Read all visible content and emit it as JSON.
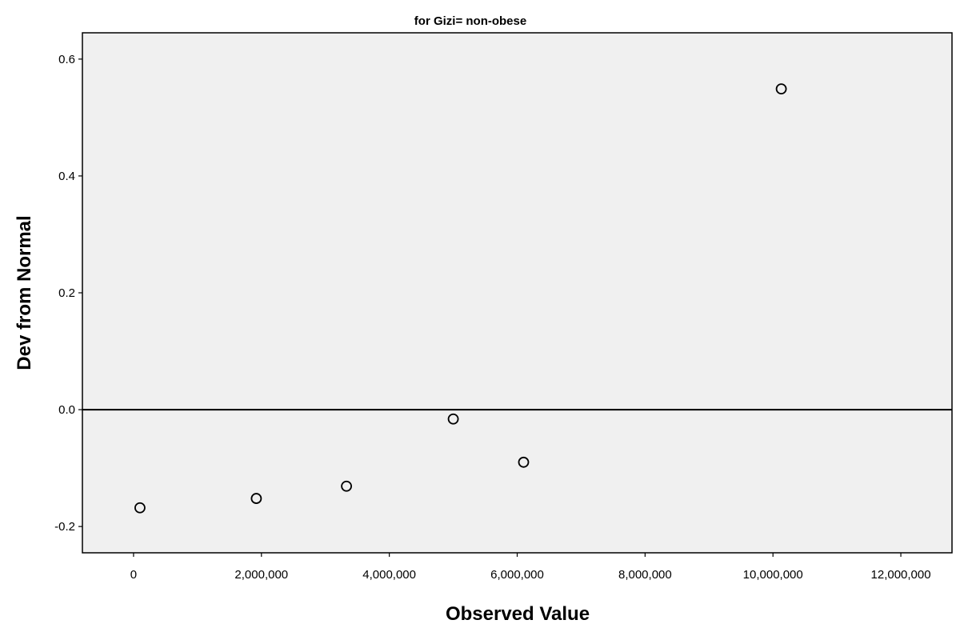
{
  "chart_data": {
    "type": "scatter",
    "title": "for Gizi= non-obese",
    "xlabel": "Observed Value",
    "ylabel": "Dev from Normal",
    "xlim": [
      -800000,
      12800000
    ],
    "ylim": [
      -0.245,
      0.645
    ],
    "x_ticks": [
      0,
      2000000,
      4000000,
      6000000,
      8000000,
      10000000,
      12000000
    ],
    "x_tick_labels": [
      "0",
      "2,000,000",
      "4,000,000",
      "6,000,000",
      "8,000,000",
      "10,000,000",
      "12,000,000"
    ],
    "y_ticks": [
      -0.2,
      0.0,
      0.2,
      0.4,
      0.6
    ],
    "y_tick_labels": [
      "-0.2",
      "0.0",
      "0.2",
      "0.4",
      "0.6"
    ],
    "reference_line_y": 0.0,
    "grid": false,
    "points": [
      {
        "x": 100000,
        "y": -0.168
      },
      {
        "x": 1920000,
        "y": -0.152
      },
      {
        "x": 3330000,
        "y": -0.131
      },
      {
        "x": 5000000,
        "y": -0.016
      },
      {
        "x": 6100000,
        "y": -0.09
      },
      {
        "x": 10130000,
        "y": 0.549
      }
    ],
    "colors": {
      "plot_background": "#f0f0f0",
      "frame": "#000000",
      "marker_stroke": "#000000",
      "marker_fill": "#f0f0f0"
    }
  }
}
